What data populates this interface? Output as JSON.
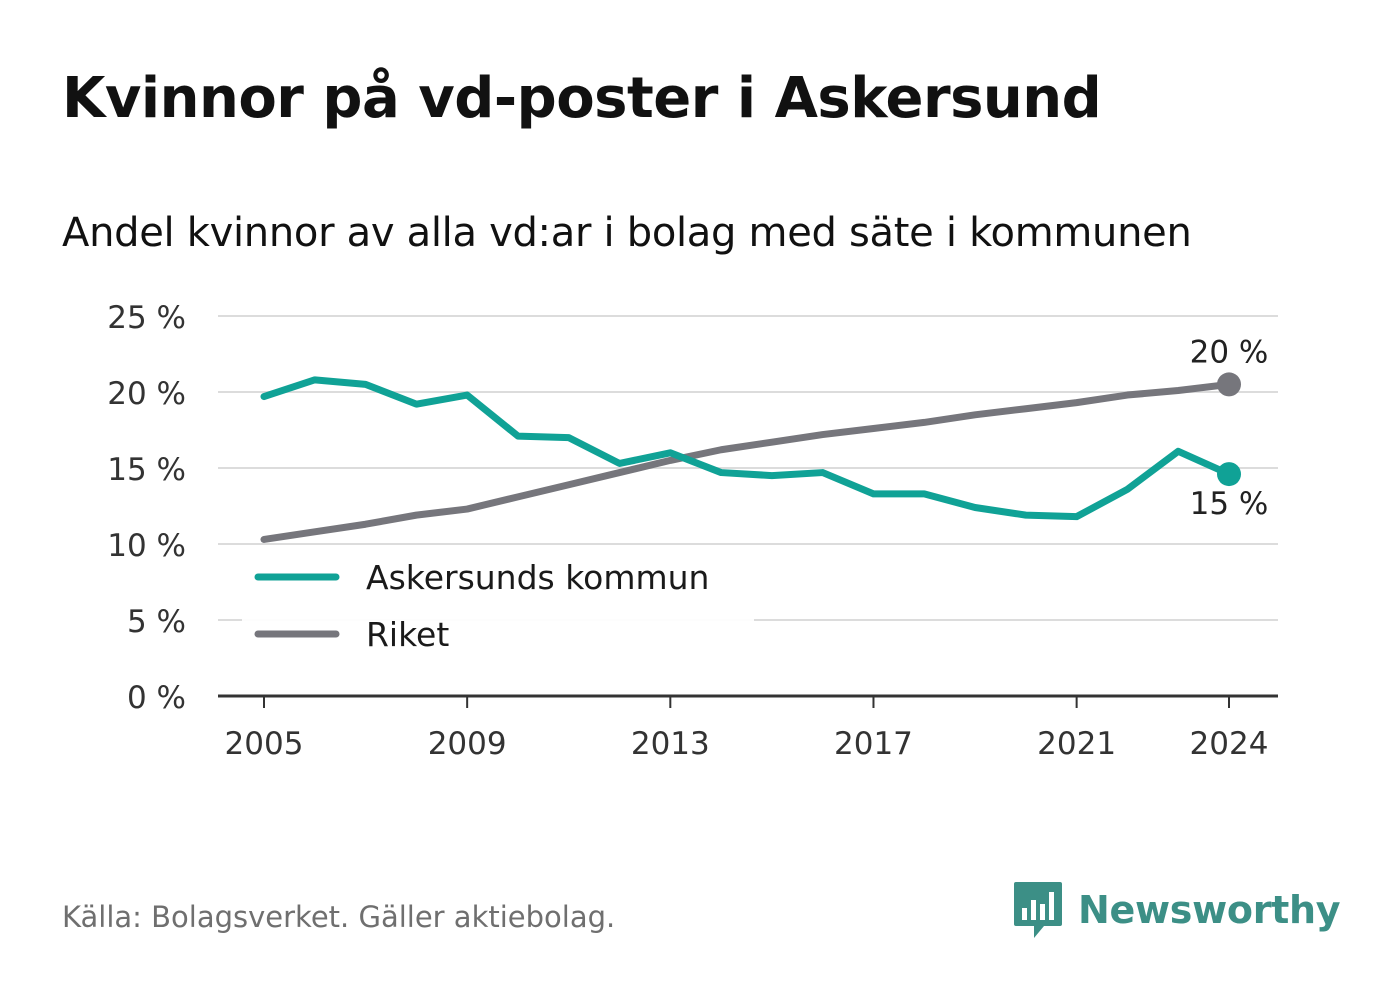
{
  "title": "Kvinnor på vd-poster i Askersund",
  "subtitle": "Andel kvinnor av alla vd:ar i bolag med säte i kommunen",
  "source": "Källa: Bolagsverket. Gäller aktiebolag.",
  "brand": {
    "name": "Newsworthy",
    "color": "#3c8f86",
    "icon": "newsworthy-logo-icon"
  },
  "chart_data": {
    "type": "line",
    "x": [
      2005,
      2006,
      2007,
      2008,
      2009,
      2010,
      2011,
      2012,
      2013,
      2014,
      2015,
      2016,
      2017,
      2018,
      2019,
      2020,
      2021,
      2022,
      2023,
      2024
    ],
    "series": [
      {
        "name": "Askersunds kommun",
        "color": "#10a296",
        "values": [
          19.7,
          20.8,
          20.5,
          19.2,
          19.8,
          17.1,
          17.0,
          15.3,
          16.0,
          14.7,
          14.5,
          14.7,
          13.3,
          13.3,
          12.4,
          11.9,
          11.8,
          13.6,
          16.1,
          14.6
        ]
      },
      {
        "name": "Riket",
        "color": "#76767c",
        "values": [
          10.3,
          10.8,
          11.3,
          11.9,
          12.3,
          13.1,
          13.9,
          14.7,
          15.5,
          16.2,
          16.7,
          17.2,
          17.6,
          18.0,
          18.5,
          18.9,
          19.3,
          19.8,
          20.1,
          20.5
        ]
      }
    ],
    "end_labels": [
      "15 %",
      "20 %"
    ],
    "x_ticks": [
      "2005",
      "2009",
      "2013",
      "2017",
      "2021",
      "2024"
    ],
    "y_ticks": [
      "0 %",
      "5 %",
      "10 %",
      "15 %",
      "20 %",
      "25 %"
    ],
    "ylim": [
      0,
      25
    ],
    "grid": true,
    "legend_placement": "bottom-left"
  }
}
